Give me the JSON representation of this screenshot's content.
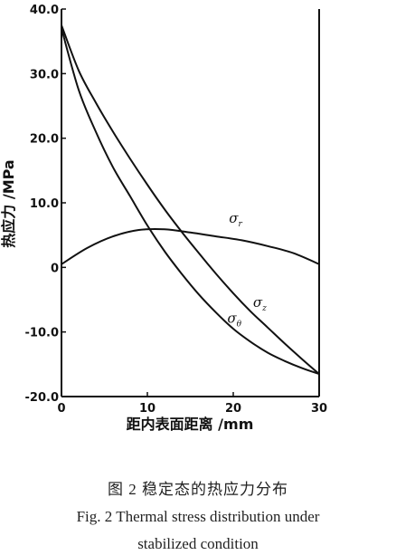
{
  "chart_data": {
    "type": "line",
    "xlabel": "距内表面距离 /mm",
    "ylabel": "热应力 /MPa",
    "xlim": [
      0,
      30
    ],
    "ylim": [
      -20,
      40
    ],
    "x_ticks": [
      "0",
      "10",
      "20",
      "30"
    ],
    "y_ticks": [
      "-20.0",
      "-10.0",
      "0",
      "10.0",
      "20.0",
      "30.0",
      "40.0"
    ],
    "grid": false,
    "series": [
      {
        "name": "σr",
        "label_sub": "r",
        "label_at": [
          19.5,
          6.9
        ],
        "x": [
          0,
          3,
          6,
          9,
          12,
          15,
          18,
          21,
          24,
          27,
          30
        ],
        "y": [
          0.5,
          3.0,
          4.8,
          5.8,
          5.9,
          5.4,
          4.8,
          4.2,
          3.3,
          2.2,
          0.5
        ]
      },
      {
        "name": "σz",
        "label_sub": "z",
        "label_at": [
          22.3,
          -6.1
        ],
        "x": [
          0,
          2,
          4,
          6,
          8,
          10,
          12,
          14,
          16,
          18,
          20,
          22,
          24,
          26,
          28,
          30
        ],
        "y": [
          37.5,
          30.5,
          25.5,
          21.0,
          16.8,
          12.8,
          9.0,
          5.5,
          2.2,
          -1.0,
          -4.0,
          -6.8,
          -9.3,
          -11.8,
          -14.2,
          -16.5
        ]
      },
      {
        "name": "σθ",
        "label_sub": "θ",
        "label_at": [
          19.3,
          -8.6
        ],
        "x": [
          0,
          2,
          4,
          6,
          8,
          10,
          12,
          14,
          16,
          18,
          20,
          22,
          24,
          26,
          28,
          30
        ],
        "y": [
          37.0,
          27.5,
          21.0,
          15.5,
          11.0,
          6.5,
          2.5,
          -1.0,
          -4.2,
          -7.0,
          -9.5,
          -11.5,
          -13.2,
          -14.5,
          -15.6,
          -16.5
        ]
      }
    ]
  },
  "caption": {
    "zh": "图 2   稳定态的热应力分布",
    "en_line1": "Fig. 2   Thermal stress distribution under",
    "en_line2": "stabilized condition"
  }
}
